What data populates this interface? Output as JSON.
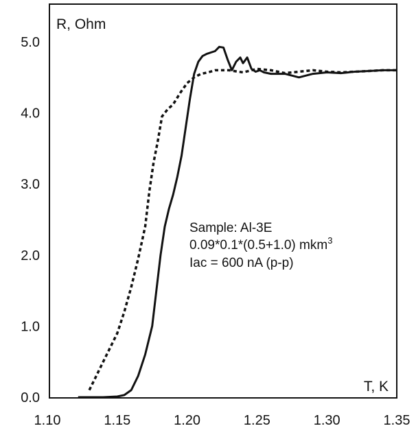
{
  "chart_data": {
    "type": "line",
    "ylabel": "R, Ohm",
    "xlabel": "T, K",
    "xlim": [
      1.12,
      1.35
    ],
    "ylim": [
      0.0,
      5.3
    ],
    "x_ticks": [
      1.1,
      1.15,
      1.2,
      1.25,
      1.3,
      1.35
    ],
    "x_tick_labels": [
      "1.10",
      "1.15",
      "1.20",
      "1.25",
      "1.30",
      "1.35"
    ],
    "y_ticks": [
      0.0,
      1.0,
      2.0,
      3.0,
      4.0,
      5.0
    ],
    "y_tick_labels": [
      "0.0",
      "1.0",
      "2.0",
      "3.0",
      "4.0",
      "5.0"
    ],
    "grid": false,
    "annotation_lines": [
      "Sample: Al-3E",
      "0.09*0.1*(0.5+1.0) mkm",
      "Iac = 600 nA (p-p)"
    ],
    "annotation_superscript": "3",
    "series": [
      {
        "style": "solid",
        "color": "#111111",
        "x": [
          1.122,
          1.13,
          1.14,
          1.15,
          1.155,
          1.16,
          1.165,
          1.17,
          1.175,
          1.178,
          1.181,
          1.184,
          1.187,
          1.19,
          1.193,
          1.196,
          1.199,
          1.202,
          1.205,
          1.208,
          1.211,
          1.214,
          1.217,
          1.22,
          1.223,
          1.226,
          1.229,
          1.232,
          1.235,
          1.238,
          1.24,
          1.243,
          1.246,
          1.249,
          1.252,
          1.255,
          1.26,
          1.27,
          1.28,
          1.29,
          1.3,
          1.31,
          1.32,
          1.33,
          1.34,
          1.35
        ],
        "y": [
          0.0,
          0.0,
          0.0,
          0.01,
          0.03,
          0.1,
          0.3,
          0.6,
          1.0,
          1.5,
          2.0,
          2.4,
          2.65,
          2.85,
          3.1,
          3.4,
          3.8,
          4.2,
          4.55,
          4.72,
          4.8,
          4.83,
          4.85,
          4.87,
          4.93,
          4.92,
          4.75,
          4.6,
          4.72,
          4.78,
          4.7,
          4.78,
          4.62,
          4.58,
          4.6,
          4.57,
          4.55,
          4.55,
          4.5,
          4.55,
          4.57,
          4.56,
          4.58,
          4.59,
          4.6,
          4.6
        ]
      },
      {
        "style": "dashed",
        "color": "#111111",
        "x": [
          1.13,
          1.135,
          1.14,
          1.145,
          1.15,
          1.155,
          1.16,
          1.165,
          1.17,
          1.173,
          1.176,
          1.179,
          1.182,
          1.186,
          1.19,
          1.195,
          1.2,
          1.205,
          1.21,
          1.215,
          1.22,
          1.23,
          1.24,
          1.25,
          1.26,
          1.27,
          1.28,
          1.29,
          1.3,
          1.31,
          1.32,
          1.33,
          1.34,
          1.35
        ],
        "y": [
          0.1,
          0.3,
          0.5,
          0.7,
          0.9,
          1.2,
          1.55,
          1.95,
          2.4,
          2.9,
          3.3,
          3.6,
          3.95,
          4.05,
          4.12,
          4.28,
          4.42,
          4.5,
          4.55,
          4.57,
          4.6,
          4.6,
          4.57,
          4.62,
          4.6,
          4.56,
          4.58,
          4.6,
          4.58,
          4.57,
          4.58,
          4.59,
          4.6,
          4.6
        ]
      }
    ]
  }
}
